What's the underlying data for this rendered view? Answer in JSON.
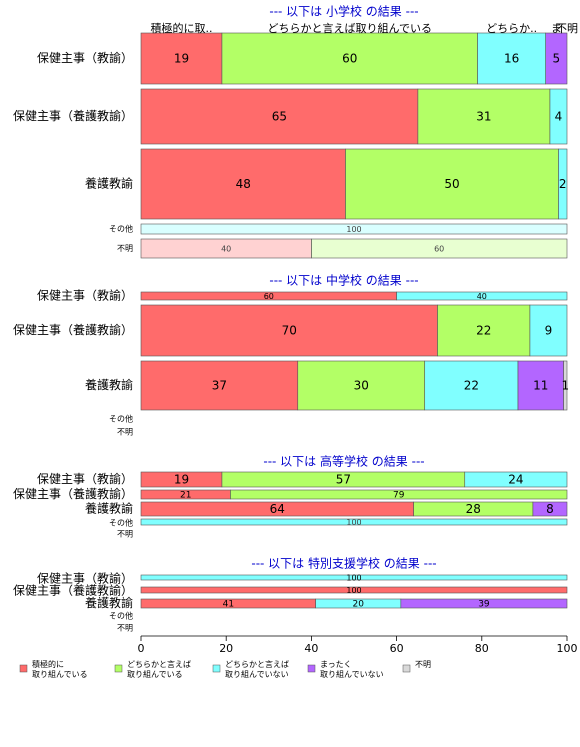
{
  "legend": [
    {
      "name": "積極的に\n取り組んでいる",
      "color": "#ff6b6b"
    },
    {
      "name": "どちらかと言えば\n取り組んでいる",
      "color": "#b3ff66"
    },
    {
      "name": "どちらかと言えば\n取り組んでいない",
      "color": "#80ffff"
    },
    {
      "name": "まったく\n取り組んでいない",
      "color": "#b366ff"
    },
    {
      "name": "不明",
      "color": "#d9d9d9"
    }
  ],
  "chart_data": [
    {
      "type": "bar",
      "title": "--- 以下は 小学校 の結果 ---",
      "header_labels": [
        "積極的に取..",
        "どちらかと言えば取り組んでいる",
        "どちらか..",
        "ま",
        "不明"
      ],
      "categories": [
        "保健主事（教諭）",
        "保健主事（養護教諭）",
        "養護教諭",
        "その他",
        "不明"
      ],
      "xlim": [
        0,
        100
      ],
      "series": [
        {
          "values": [
            19,
            65,
            48,
            null,
            40
          ]
        },
        {
          "values": [
            60,
            31,
            50,
            null,
            60
          ]
        },
        {
          "values": [
            16,
            4,
            2,
            100,
            null
          ]
        },
        {
          "values": [
            5,
            null,
            null,
            null,
            null
          ]
        },
        {
          "values": [
            null,
            null,
            null,
            null,
            null
          ]
        }
      ]
    },
    {
      "type": "bar",
      "title": "--- 以下は 中学校 の結果 ---",
      "categories": [
        "保健主事（教諭）",
        "保健主事（養護教諭）",
        "養護教諭",
        "その他",
        "不明"
      ],
      "xlim": [
        0,
        100
      ],
      "series": [
        {
          "values": [
            60,
            69.6,
            36.8,
            null,
            null
          ],
          "value_labels": [
            null,
            "70",
            "37",
            null,
            null
          ]
        },
        {
          "values": [
            null,
            21.7,
            29.8,
            null,
            null
          ],
          "value_labels": [
            null,
            "22",
            "30",
            null,
            null
          ]
        },
        {
          "values": [
            40,
            8.7,
            21.9,
            null,
            null
          ],
          "value_labels": [
            null,
            "9",
            "22",
            null,
            null
          ]
        },
        {
          "values": [
            null,
            null,
            10.7,
            null,
            null
          ],
          "value_labels": [
            null,
            null,
            "11",
            null,
            null
          ]
        },
        {
          "values": [
            null,
            null,
            0.8,
            null,
            null
          ],
          "value_labels": [
            null,
            null,
            "1",
            null,
            null
          ]
        }
      ]
    },
    {
      "type": "bar",
      "title": "--- 以下は 高等学校 の結果 ---",
      "categories": [
        "保健主事（教諭）",
        "保健主事（養護教諭）",
        "養護教諭",
        "その他",
        "不明"
      ],
      "xlim": [
        0,
        100
      ],
      "series": [
        {
          "values": [
            19,
            21,
            64,
            null,
            null
          ]
        },
        {
          "values": [
            57,
            79,
            28,
            null,
            null
          ]
        },
        {
          "values": [
            24,
            null,
            null,
            100,
            null
          ]
        },
        {
          "values": [
            null,
            null,
            8,
            null,
            null
          ]
        },
        {
          "values": [
            null,
            null,
            null,
            null,
            null
          ]
        }
      ]
    },
    {
      "type": "bar",
      "title": "--- 以下は 特別支援学校 の結果 ---",
      "categories": [
        "保健主事（教諭）",
        "保健主事（養護教諭）",
        "養護教諭",
        "その他",
        "不明"
      ],
      "xlim": [
        0,
        100
      ],
      "xticks": [
        0,
        20,
        40,
        60,
        80,
        100
      ],
      "series": [
        {
          "values": [
            null,
            100,
            41,
            null,
            null
          ]
        },
        {
          "values": [
            null,
            null,
            null,
            null,
            null
          ]
        },
        {
          "values": [
            100,
            null,
            20,
            null,
            null
          ]
        },
        {
          "values": [
            null,
            null,
            39,
            null,
            null
          ]
        },
        {
          "values": [
            null,
            null,
            null,
            null,
            null
          ]
        }
      ]
    }
  ]
}
